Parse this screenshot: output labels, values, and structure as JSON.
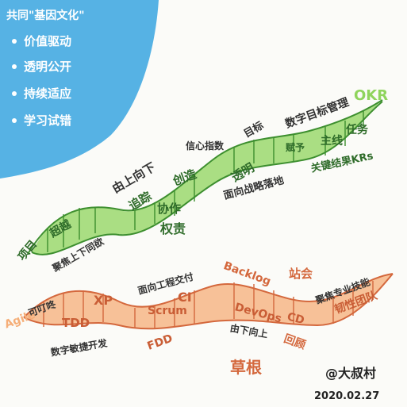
{
  "corner_box": {
    "title": "共同\"基因文化\"",
    "bullets": [
      "价值驱动",
      "透明公开",
      "持续适应",
      "学习试错"
    ],
    "color": "#3fa7e0"
  },
  "okr_helix": {
    "color": "#8fd45c",
    "dark": "#3d8f2f",
    "tag": "OKR",
    "labels": {
      "xiangmu": "项目",
      "chaoyue": "超越",
      "juxiao": "聚焦上下同欲",
      "youshang": "由上向下",
      "zhuizong": "追踪",
      "chuangzao": "创造",
      "xiezuo": "协作",
      "quanze": "权责",
      "xinxin": "信心指数",
      "touming": "透明",
      "mianxiang": "面向战略落地",
      "mubiao": "目标",
      "shuzi": "数字目标管理",
      "jieguo": "关键结果KRs",
      "fuyu": "赋予",
      "renwu": "任务",
      "zhuwu": "主线"
    }
  },
  "agile_helix": {
    "color": "#f5ae78",
    "dark": "#d4683d",
    "tag": "Agile",
    "labels": {
      "dingdong": "可叮咚",
      "tdd": "TDD",
      "xp": "XP",
      "mianxiang": "面向工程交付",
      "ci": "CI",
      "scrum": "Scrum",
      "fdd": "FDD",
      "backlog": "Backlog",
      "devops": "DevOps",
      "cd": "CD",
      "youxia": "由下向上",
      "huigu": "回顾",
      "zhanhui": "站会",
      "jishu": "聚焦专业技能",
      "tuandui": "韧性团队",
      "shuzi": "数字敏捷开发",
      "caogen": "草根"
    }
  },
  "signature": {
    "author": "@大叔村",
    "date": "2020.02.27"
  }
}
